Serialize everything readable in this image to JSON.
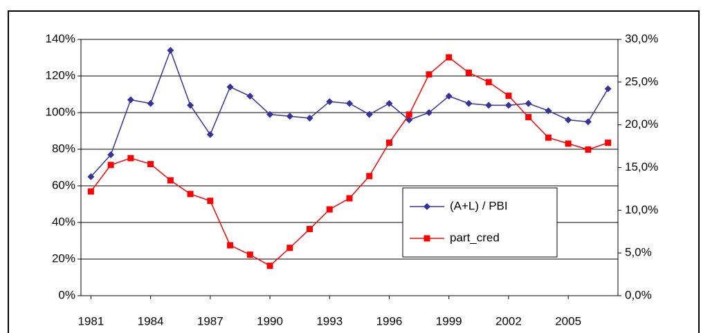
{
  "chart_data": {
    "type": "line",
    "x": [
      1981,
      1982,
      1983,
      1984,
      1985,
      1986,
      1987,
      1988,
      1989,
      1990,
      1991,
      1992,
      1993,
      1994,
      1995,
      1996,
      1997,
      1998,
      1999,
      2000,
      2001,
      2002,
      2003,
      2004,
      2005,
      2006,
      2007
    ],
    "xlim": [
      1980.5,
      2007.5
    ],
    "xticks": [
      1981,
      1984,
      1987,
      1990,
      1993,
      1996,
      1999,
      2002,
      2005
    ],
    "ylim": [
      0,
      140
    ],
    "yticks": [
      {
        "value": 0,
        "label": "0%"
      },
      {
        "value": 20,
        "label": "20%"
      },
      {
        "value": 40,
        "label": "40%"
      },
      {
        "value": 60,
        "label": "60%"
      },
      {
        "value": 80,
        "label": "80%"
      },
      {
        "value": 100,
        "label": "100%"
      },
      {
        "value": 120,
        "label": "120%"
      },
      {
        "value": 140,
        "label": "140%"
      }
    ],
    "y2lim": [
      0,
      30
    ],
    "y2ticks": [
      {
        "value": 0,
        "label": "0,0%"
      },
      {
        "value": 5,
        "label": "5,0%"
      },
      {
        "value": 10,
        "label": "10,0%"
      },
      {
        "value": 15,
        "label": "15,0%"
      },
      {
        "value": 20,
        "label": "20,0%"
      },
      {
        "value": 25,
        "label": "25,0%"
      },
      {
        "value": 30,
        "label": "30,0%"
      }
    ],
    "grid": true,
    "legend": "right",
    "series": [
      {
        "name": "(A+L) / PBI",
        "color": "#333399",
        "marker": "diamond",
        "values": [
          65,
          77,
          107,
          105,
          134,
          104,
          88,
          114,
          109,
          99,
          98,
          97,
          106,
          105,
          99,
          105,
          96,
          100,
          109,
          105,
          104,
          104,
          105,
          101,
          96,
          95,
          113
        ]
      },
      {
        "name": "part_cred",
        "color": "#ff0000",
        "marker": "square",
        "axis": "y2",
        "values": [
          12.2,
          15.3,
          16.1,
          15.4,
          13.5,
          11.9,
          11.1,
          5.9,
          4.8,
          3.5,
          5.6,
          7.8,
          10.1,
          11.4,
          14.0,
          17.9,
          21.2,
          25.9,
          27.9,
          26.1,
          25.0,
          23.4,
          20.9,
          18.5,
          17.8,
          17.1,
          17.9
        ]
      }
    ]
  }
}
